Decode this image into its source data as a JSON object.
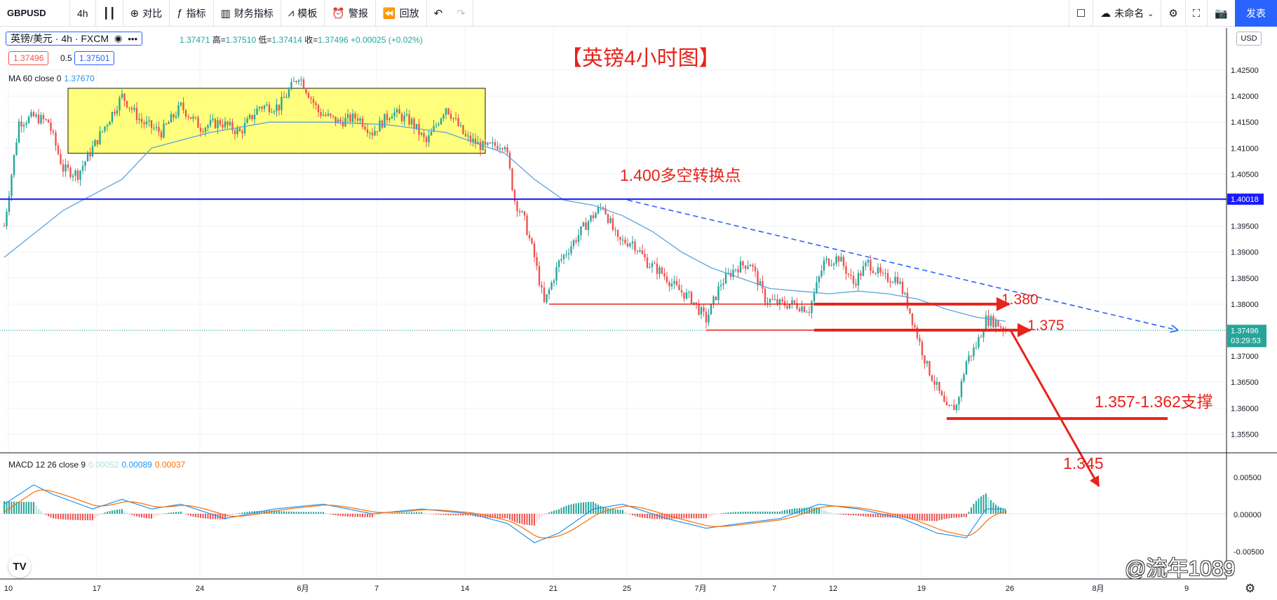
{
  "toolbar": {
    "symbol": "GBPUSD",
    "interval": "4h",
    "items": [
      {
        "icon": "candles-icon",
        "label": ""
      },
      {
        "icon": "plus-circle-icon",
        "label": "对比"
      },
      {
        "icon": "fx-icon",
        "label": "指标"
      },
      {
        "icon": "bar-chart-icon",
        "label": "财务指标"
      },
      {
        "icon": "template-icon",
        "label": "模板"
      },
      {
        "icon": "alarm-icon",
        "label": "警报"
      },
      {
        "icon": "replay-icon",
        "label": "回放"
      }
    ],
    "layout_name": "未命名",
    "publish": "发表"
  },
  "legend": {
    "title": "英镑/美元 · 4h · FXCM",
    "ohlc": {
      "open_label": "",
      "open": "1.37471",
      "high_label": "高=",
      "high": "1.37510",
      "low_label": "低=",
      "low": "1.37414",
      "close_label": "收=",
      "close": "1.37496",
      "change": "+0.00025 (+0.02%)"
    },
    "bid": "1.37496",
    "spread": "0.5",
    "ask": "1.37501",
    "ma_label": "MA 60 close 0",
    "ma_value": "1.37670",
    "macd_label": "MACD 12 26 close 9",
    "macd_hist": "0.00052",
    "macd_line": "0.00089",
    "macd_signal": "0.00037",
    "currency": "USD"
  },
  "annotations": {
    "title": "【英镑4小时图】",
    "pivot": "1.400多空转换点",
    "level_1380": "1.380",
    "level_1375": "1.375",
    "support": "1.357-1.362支撑",
    "target": "1.345",
    "watermark": "@流年1089"
  },
  "colors": {
    "up": "#26a69a",
    "down": "#ef5350",
    "accent": "#2962ff",
    "annotation": "#e8221c",
    "box_fill": "#ffff66",
    "ma": "#5ba3e0"
  },
  "chart_data": {
    "type": "candlestick",
    "symbol": "GBPUSD",
    "interval": "4h",
    "price_axis": {
      "ylim": [
        1.3505,
        1.4305
      ],
      "ticks": [
        "1.42500",
        "1.42000",
        "1.41500",
        "1.41000",
        "1.40500",
        "1.40000",
        "1.39500",
        "1.39000",
        "1.38500",
        "1.38000",
        "1.37500",
        "1.37000",
        "1.36500",
        "1.36000",
        "1.35500"
      ],
      "last_price_label": "1.37496",
      "countdown": "03:29:53",
      "horizontal_line_label": "1.40018"
    },
    "macd_axis": {
      "ylim": [
        -0.0008,
        0.0008
      ],
      "ticks": [
        "0.00500",
        "0.00000",
        "-0.00500"
      ]
    },
    "time_axis": {
      "labels": [
        "10",
        "17",
        "24",
        "6月",
        "7",
        "14",
        "21",
        "25",
        "7月",
        "7",
        "12",
        "19",
        "26",
        "8月",
        "9"
      ],
      "x_index": [
        0,
        36,
        78,
        120,
        150,
        186,
        222,
        252,
        282,
        312,
        336,
        372,
        408,
        444,
        480
      ]
    },
    "price_path": [
      [
        0,
        1.395
      ],
      [
        6,
        1.415
      ],
      [
        12,
        1.416
      ],
      [
        18,
        1.415
      ],
      [
        24,
        1.406
      ],
      [
        30,
        1.405
      ],
      [
        36,
        1.41
      ],
      [
        42,
        1.415
      ],
      [
        48,
        1.42
      ],
      [
        56,
        1.415
      ],
      [
        64,
        1.413
      ],
      [
        72,
        1.418
      ],
      [
        80,
        1.414
      ],
      [
        88,
        1.415
      ],
      [
        96,
        1.413
      ],
      [
        104,
        1.418
      ],
      [
        112,
        1.418
      ],
      [
        120,
        1.424
      ],
      [
        128,
        1.417
      ],
      [
        136,
        1.415
      ],
      [
        144,
        1.416
      ],
      [
        150,
        1.413
      ],
      [
        158,
        1.417
      ],
      [
        166,
        1.415
      ],
      [
        172,
        1.411
      ],
      [
        180,
        1.418
      ],
      [
        188,
        1.412
      ],
      [
        196,
        1.41
      ],
      [
        204,
        1.411
      ],
      [
        208,
        1.4
      ],
      [
        212,
        1.396
      ],
      [
        216,
        1.389
      ],
      [
        220,
        1.38
      ],
      [
        226,
        1.388
      ],
      [
        232,
        1.392
      ],
      [
        238,
        1.396
      ],
      [
        244,
        1.399
      ],
      [
        250,
        1.392
      ],
      [
        256,
        1.392
      ],
      [
        262,
        1.388
      ],
      [
        268,
        1.386
      ],
      [
        274,
        1.383
      ],
      [
        280,
        1.381
      ],
      [
        286,
        1.377
      ],
      [
        292,
        1.384
      ],
      [
        298,
        1.387
      ],
      [
        304,
        1.388
      ],
      [
        310,
        1.381
      ],
      [
        316,
        1.38
      ],
      [
        322,
        1.38
      ],
      [
        328,
        1.379
      ],
      [
        334,
        1.388
      ],
      [
        340,
        1.389
      ],
      [
        346,
        1.384
      ],
      [
        352,
        1.388
      ],
      [
        358,
        1.385
      ],
      [
        364,
        1.385
      ],
      [
        368,
        1.38
      ],
      [
        372,
        1.374
      ],
      [
        376,
        1.368
      ],
      [
        380,
        1.364
      ],
      [
        384,
        1.3595
      ],
      [
        388,
        1.3605
      ],
      [
        392,
        1.369
      ],
      [
        396,
        1.372
      ],
      [
        400,
        1.377
      ],
      [
        404,
        1.3765
      ],
      [
        408,
        1.375
      ]
    ],
    "ma60": [
      [
        0,
        1.389
      ],
      [
        24,
        1.398
      ],
      [
        48,
        1.404
      ],
      [
        60,
        1.41
      ],
      [
        84,
        1.413
      ],
      [
        108,
        1.415
      ],
      [
        132,
        1.415
      ],
      [
        156,
        1.4145
      ],
      [
        180,
        1.413
      ],
      [
        204,
        1.409
      ],
      [
        216,
        1.404
      ],
      [
        228,
        1.4
      ],
      [
        240,
        1.399
      ],
      [
        252,
        1.397
      ],
      [
        264,
        1.394
      ],
      [
        276,
        1.39
      ],
      [
        288,
        1.387
      ],
      [
        300,
        1.385
      ],
      [
        312,
        1.383
      ],
      [
        324,
        1.3825
      ],
      [
        336,
        1.382
      ],
      [
        348,
        1.3825
      ],
      [
        360,
        1.382
      ],
      [
        372,
        1.381
      ],
      [
        384,
        1.379
      ],
      [
        396,
        1.3775
      ],
      [
        408,
        1.3767
      ]
    ],
    "consolidation_box": {
      "x": [
        26,
        196
      ],
      "y": [
        1.409,
        1.4215
      ]
    },
    "levels": {
      "pivot": 1.40018,
      "resistance": 1.38,
      "near": 1.375,
      "support_low": 1.358,
      "target": 1.345
    },
    "trendline": {
      "from": [
        254,
        1.4
      ],
      "to": [
        478,
        1.375
      ]
    },
    "macd_path": [
      [
        0,
        0.0002
      ],
      [
        12,
        0.0006
      ],
      [
        20,
        0.0004
      ],
      [
        36,
        0.0001
      ],
      [
        48,
        0.0003
      ],
      [
        60,
        0.0001
      ],
      [
        72,
        0.0002
      ],
      [
        90,
        -0.0001
      ],
      [
        110,
        0.0001
      ],
      [
        130,
        0.0002
      ],
      [
        150,
        0.0
      ],
      [
        170,
        0.0001
      ],
      [
        190,
        0.0
      ],
      [
        205,
        -0.0002
      ],
      [
        216,
        -0.0006
      ],
      [
        226,
        -0.0004
      ],
      [
        240,
        0.0001
      ],
      [
        252,
        0.0002
      ],
      [
        270,
        -0.0001
      ],
      [
        286,
        -0.0003
      ],
      [
        300,
        -0.0002
      ],
      [
        316,
        -0.0001
      ],
      [
        332,
        0.0002
      ],
      [
        348,
        0.0001
      ],
      [
        366,
        -0.0001
      ],
      [
        380,
        -0.0004
      ],
      [
        392,
        -0.0005
      ],
      [
        400,
        0.0001
      ],
      [
        408,
        0.0001
      ]
    ]
  }
}
